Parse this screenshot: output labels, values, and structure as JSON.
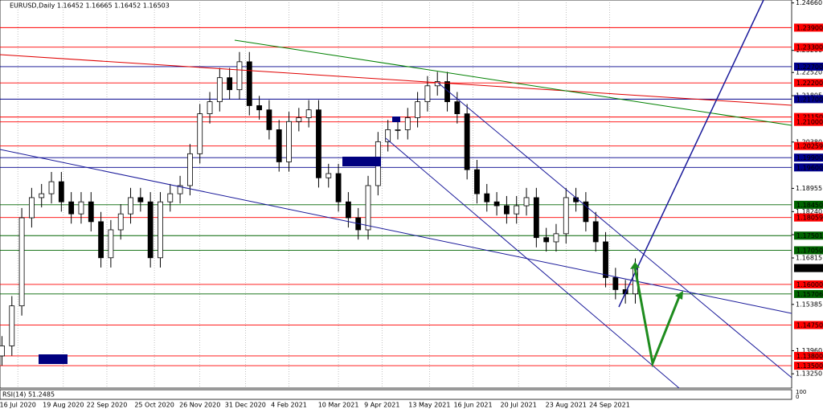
{
  "chart_data": {
    "type": "candlestick",
    "title": "EURUSD,Daily 1.16452 1.16665 1.16452 1.16503",
    "indicator": "RSI(14) 51.2485",
    "indicator_ticks": [
      100,
      0
    ],
    "x": [
      0,
      5,
      10,
      15,
      20,
      25,
      30,
      35,
      40,
      45,
      50,
      55,
      60,
      65,
      70,
      75,
      80,
      85,
      90,
      95,
      100,
      105,
      110,
      115,
      120,
      125,
      130,
      135,
      140,
      145,
      150,
      155,
      160,
      165,
      170,
      175,
      180,
      185,
      190,
      195,
      200,
      205,
      210,
      215,
      220,
      225,
      230,
      235,
      240,
      245,
      250,
      255,
      260,
      265,
      270,
      275,
      280,
      285,
      290,
      295,
      300,
      305,
      310,
      315,
      320
    ],
    "open": [
      1.138,
      1.1411,
      1.1534,
      1.1805,
      1.1867,
      1.1879,
      1.1916,
      1.1854,
      1.1817,
      1.1854,
      1.1793,
      1.1682,
      1.1768,
      1.1817,
      1.1867,
      1.1854,
      1.1682,
      1.1854,
      1.1879,
      1.1904,
      1.2002,
      1.2125,
      1.2162,
      1.2236,
      1.2199,
      1.2285,
      1.215,
      1.2137,
      1.2076,
      1.1977,
      1.2101,
      1.2113,
      1.2137,
      1.1928,
      1.1941,
      1.1854,
      1.1805,
      1.1768,
      1.1904,
      1.2039,
      1.2076,
      1.2076,
      1.2113,
      1.2162,
      1.2211,
      1.2224,
      1.2162,
      1.2125,
      1.1953,
      1.1879,
      1.1854,
      1.1842,
      1.1817,
      1.1842,
      1.1867,
      1.1744,
      1.1731,
      1.1756,
      1.1867,
      1.1854,
      1.1793,
      1.1731,
      1.1621,
      1.1584,
      1.1571
    ],
    "high": [
      1.1441,
      1.1564,
      1.1835,
      1.1897,
      1.1909,
      1.1946,
      1.1946,
      1.1884,
      1.1884,
      1.1884,
      1.1823,
      1.1798,
      1.1847,
      1.1897,
      1.1897,
      1.1884,
      1.1884,
      1.1909,
      1.1934,
      1.2032,
      1.2155,
      1.2192,
      1.2266,
      1.2266,
      1.2315,
      1.2315,
      1.218,
      1.2167,
      1.2106,
      1.2131,
      1.2143,
      1.2167,
      1.2167,
      1.1971,
      1.1971,
      1.1884,
      1.1835,
      1.1934,
      1.2069,
      1.2106,
      1.2106,
      1.2143,
      1.2192,
      1.2241,
      1.2254,
      1.2254,
      1.2192,
      1.2155,
      1.1983,
      1.1909,
      1.1884,
      1.1872,
      1.1872,
      1.1897,
      1.1897,
      1.1774,
      1.1786,
      1.1897,
      1.1897,
      1.1884,
      1.1823,
      1.1761,
      1.1651,
      1.1614,
      1.168
    ],
    "low": [
      1.135,
      1.1381,
      1.1504,
      1.1775,
      1.1837,
      1.1849,
      1.1824,
      1.1787,
      1.1787,
      1.1763,
      1.1652,
      1.1652,
      1.1738,
      1.1787,
      1.1824,
      1.1652,
      1.1652,
      1.1824,
      1.1849,
      1.1874,
      1.1972,
      1.2095,
      1.2132,
      1.2169,
      1.2169,
      1.212,
      1.2107,
      1.2046,
      1.1947,
      1.1947,
      1.2071,
      1.2083,
      1.1898,
      1.1898,
      1.1824,
      1.1775,
      1.1738,
      1.1738,
      1.1874,
      1.2009,
      1.2046,
      1.2046,
      1.2083,
      1.2132,
      1.2181,
      1.2132,
      1.2095,
      1.1923,
      1.1849,
      1.1824,
      1.1812,
      1.1787,
      1.1787,
      1.1812,
      1.1714,
      1.1701,
      1.1701,
      1.1726,
      1.1824,
      1.1763,
      1.1701,
      1.1591,
      1.1554,
      1.1541,
      1.1541
    ],
    "close": [
      1.1411,
      1.1534,
      1.1805,
      1.1867,
      1.1879,
      1.1916,
      1.1854,
      1.1817,
      1.1854,
      1.1793,
      1.1682,
      1.1768,
      1.1817,
      1.1867,
      1.1854,
      1.1682,
      1.1854,
      1.1879,
      1.1904,
      1.2002,
      1.2125,
      1.2162,
      1.2236,
      1.2199,
      1.2285,
      1.215,
      1.2137,
      1.2076,
      1.1977,
      1.2101,
      1.2113,
      1.2137,
      1.1928,
      1.1941,
      1.1854,
      1.1805,
      1.1768,
      1.1904,
      1.2039,
      1.2076,
      1.2076,
      1.2113,
      1.2162,
      1.2211,
      1.2224,
      1.2162,
      1.2125,
      1.1953,
      1.1879,
      1.1854,
      1.1842,
      1.1817,
      1.1842,
      1.1867,
      1.1744,
      1.1731,
      1.1756,
      1.1867,
      1.1854,
      1.1793,
      1.1731,
      1.1621,
      1.1584,
      1.1571,
      1.165
    ],
    "color": "#000000",
    "xlim": [
      -1,
      399
    ],
    "xticks": [
      {
        "value": 8,
        "label": "16 Jul 2020"
      },
      {
        "value": 31,
        "label": "19 Aug 2020"
      },
      {
        "value": 53,
        "label": "22 Sep 2020"
      },
      {
        "value": 77,
        "label": "25 Oct 2020"
      },
      {
        "value": 100,
        "label": "26 Nov 2020"
      },
      {
        "value": 123,
        "label": "31 Dec 2020"
      },
      {
        "value": 145,
        "label": "4 Feb 2021"
      },
      {
        "value": 170,
        "label": "10 Mar 2021"
      },
      {
        "value": 192,
        "label": "9 Apr 2021"
      },
      {
        "value": 216,
        "label": "13 May 2021"
      },
      {
        "value": 238,
        "label": "16 Jun 2021"
      },
      {
        "value": 261,
        "label": "20 Jul 2021"
      },
      {
        "value": 285,
        "label": "23 Aug 2021"
      },
      {
        "value": 307,
        "label": "24 Sep 2021"
      }
    ],
    "ylim": [
      1.1281,
      1.2475
    ],
    "yticks": [
      {
        "value": 1.2466,
        "label": "1.24660"
      },
      {
        "value": 1.232,
        "label": "1.23200"
      },
      {
        "value": 1.2252,
        "label": "1.22520"
      },
      {
        "value": 1.21805,
        "label": "1.21805"
      },
      {
        "value": 1.2038,
        "label": "1.20380"
      },
      {
        "value": 1.18955,
        "label": "1.18955"
      },
      {
        "value": 1.1824,
        "label": "1.18240"
      },
      {
        "value": 1.1753,
        "label": "1.17530"
      },
      {
        "value": 1.16815,
        "label": "1.16815"
      },
      {
        "value": 1.15385,
        "label": "1.15385"
      },
      {
        "value": 1.1396,
        "label": "1.13960"
      },
      {
        "value": 1.1325,
        "label": "1.13250"
      }
    ],
    "levels": [
      {
        "value": 1.239,
        "label": "1.23900",
        "color": "#ff0000"
      },
      {
        "value": 1.233,
        "label": "1.23300",
        "color": "#ff0000"
      },
      {
        "value": 1.227,
        "label": "1.22700",
        "color": "#00008b"
      },
      {
        "value": 1.222,
        "label": "1.22200",
        "color": "#ff0000"
      },
      {
        "value": 1.217,
        "label": "1.21700",
        "color": "#00008b"
      },
      {
        "value": 1.2115,
        "label": "1.21150",
        "color": "#ff0000"
      },
      {
        "value": 1.21,
        "label": "1.21000",
        "color": "#ff0000"
      },
      {
        "value": 1.20259,
        "label": "1.20259",
        "color": "#ff0000"
      },
      {
        "value": 1.199,
        "label": "1.19900",
        "color": "#00008b"
      },
      {
        "value": 1.196,
        "label": "1.19600",
        "color": "#00008b"
      },
      {
        "value": 1.1845,
        "label": "1.18450",
        "color": "#006400"
      },
      {
        "value": 1.18059,
        "label": "1.18059",
        "color": "#ff0000"
      },
      {
        "value": 1.17501,
        "label": "1.17501",
        "color": "#006400"
      },
      {
        "value": 1.1705,
        "label": "1.17050",
        "color": "#006400"
      },
      {
        "value": 1.16,
        "label": "1.16000",
        "color": "#ff0000"
      },
      {
        "value": 1.15706,
        "label": "1.15706",
        "color": "#006400"
      },
      {
        "value": 1.1475,
        "label": "1.14750",
        "color": "#ff0000"
      },
      {
        "value": 1.138,
        "label": "1.13800",
        "color": "#ff0000"
      },
      {
        "value": 1.135,
        "label": "1.13500",
        "color": "#ff0000"
      }
    ],
    "current": {
      "value": 1.16503,
      "label": "1.16503",
      "color": "#000000"
    }
  }
}
